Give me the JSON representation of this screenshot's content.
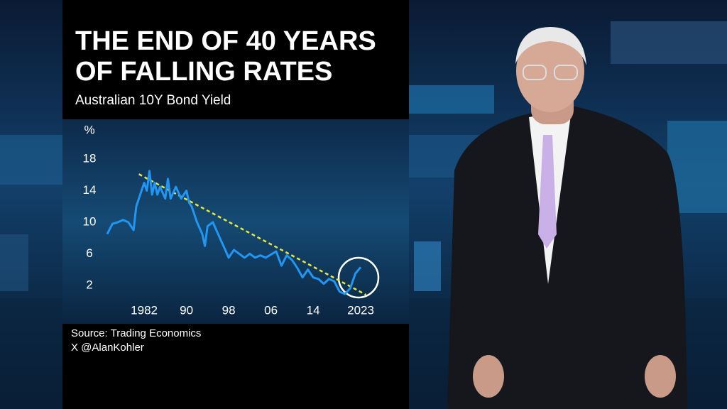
{
  "chart_data": {
    "type": "line",
    "title": [
      "THE END OF 40 YEARS",
      "OF FALLING RATES"
    ],
    "subtitle": "Australian 10Y Bond Yield",
    "y_unit": "%",
    "source": "Source: Trading Economics",
    "credit": "X @AlanKohler",
    "x": [
      1975,
      1976,
      1977,
      1978,
      1979,
      1980,
      1980.5,
      1981,
      1982,
      1982.5,
      1983,
      1983.5,
      1984,
      1984.5,
      1985,
      1986,
      1986.5,
      1987,
      1988,
      1989,
      1990,
      1990.5,
      1991,
      1992,
      1993,
      1993.5,
      1994,
      1995,
      1996,
      1997,
      1998,
      1999,
      2000,
      2001,
      2002,
      2003,
      2004,
      2005,
      2006,
      2007,
      2008,
      2009,
      2010,
      2011,
      2012,
      2013,
      2014,
      2015,
      2016,
      2017,
      2018,
      2019,
      2020,
      2021,
      2022,
      2023
    ],
    "series": [
      {
        "name": "Australian 10Y Bond Yield",
        "color": "#2196f3",
        "values": [
          8.5,
          9.8,
          10.0,
          10.3,
          10.0,
          9.0,
          12.0,
          13.0,
          15.0,
          14.0,
          16.5,
          13.5,
          15.0,
          13.5,
          14.5,
          13.0,
          15.5,
          13.0,
          14.5,
          13.0,
          14.0,
          12.5,
          12.0,
          10.0,
          8.5,
          7.0,
          9.5,
          10.0,
          8.5,
          7.0,
          5.5,
          6.5,
          6.0,
          5.5,
          6.0,
          5.5,
          5.8,
          5.5,
          5.9,
          6.3,
          4.5,
          5.8,
          5.2,
          4.2,
          3.0,
          4.0,
          3.0,
          2.8,
          2.2,
          2.8,
          2.5,
          1.2,
          0.9,
          1.6,
          3.5,
          4.3
        ]
      }
    ],
    "trend": {
      "x": [
        1981,
        2024
      ],
      "values": [
        16.1,
        0.8
      ],
      "color": "#e8e83a"
    },
    "xlim": [
      1975,
      2024
    ],
    "ylim": [
      0,
      20
    ],
    "xticks": [
      1982,
      {
        "value": 1990,
        "label": "90"
      },
      {
        "value": 1998,
        "label": "98"
      },
      {
        "value": 2006,
        "label": "06"
      },
      {
        "value": 2014,
        "label": "14"
      },
      2023
    ],
    "yticks": [
      2,
      6,
      10,
      14,
      18
    ]
  }
}
